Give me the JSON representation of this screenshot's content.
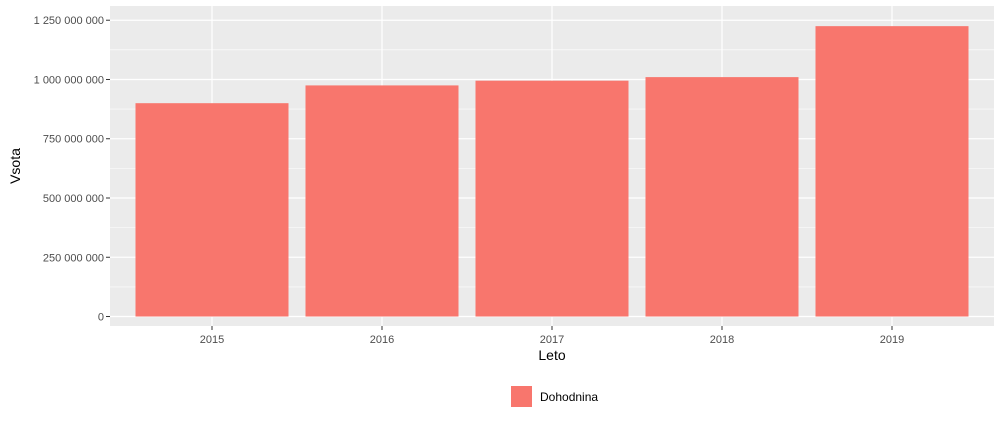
{
  "chart_data": {
    "type": "bar",
    "categories": [
      "2015",
      "2016",
      "2017",
      "2018",
      "2019"
    ],
    "series": [
      {
        "name": "Dohodnina",
        "values": [
          900000000,
          975000000,
          995000000,
          1010000000,
          1225000000
        ]
      }
    ],
    "xlabel": "Leto",
    "ylabel": "Vsota",
    "ylim": [
      -40000000,
      1310000000
    ],
    "yticks": [
      0,
      250000000,
      500000000,
      750000000,
      1000000000,
      1250000000
    ],
    "ytick_labels": [
      "0",
      "250 000 000",
      "500 000 000",
      "750 000 000",
      "1 000 000 000",
      "1 250 000 000"
    ],
    "grid": true,
    "legend_position": "bottom",
    "colors": {
      "bar": "#F8766D",
      "panel": "#EBEBEB",
      "grid": "#FFFFFF"
    }
  }
}
